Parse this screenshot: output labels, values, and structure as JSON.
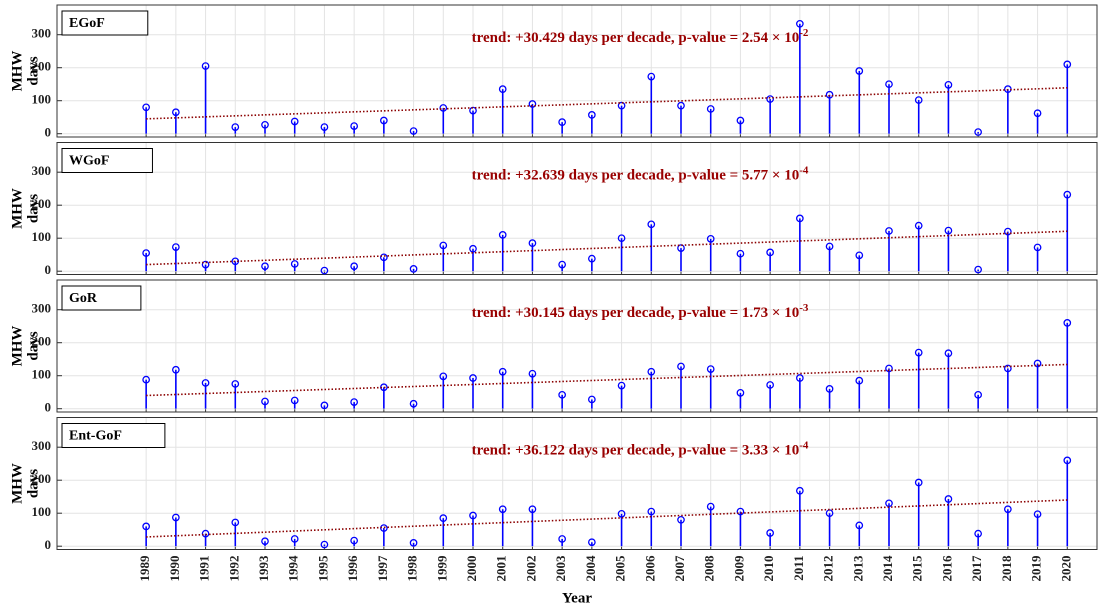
{
  "chart_data": [
    {
      "type": "stem",
      "title": "EGoF",
      "annotation": "trend: +30.429 days per decade, p-value = 2.54 × 10",
      "annotation_exponent": "-2",
      "annotation_color": "#990000",
      "ylabel": [
        "MHW",
        "days"
      ],
      "x": [
        1989,
        1990,
        1991,
        1992,
        1993,
        1994,
        1995,
        1996,
        1997,
        1998,
        1999,
        2000,
        2001,
        2002,
        2003,
        2004,
        2005,
        2006,
        2007,
        2008,
        2009,
        2010,
        2011,
        2012,
        2013,
        2014,
        2015,
        2016,
        2017,
        2018,
        2019,
        2020
      ],
      "values": [
        80,
        65,
        205,
        20,
        27,
        37,
        20,
        23,
        40,
        8,
        78,
        70,
        135,
        90,
        35,
        57,
        85,
        173,
        85,
        75,
        40,
        105,
        333,
        118,
        190,
        150,
        102,
        148,
        5,
        135,
        62,
        210
      ],
      "color": "#0000ff",
      "trend": {
        "x": [
          1989,
          2020
        ],
        "values": [
          45,
          139
        ],
        "color": "#8b0000"
      },
      "xlim": [
        1986,
        2021
      ],
      "ylim": [
        -10,
        390
      ],
      "yticks": [
        0,
        100,
        200,
        300
      ],
      "xticks": [
        1989,
        1990,
        1991,
        1992,
        1993,
        1994,
        1995,
        1996,
        1997,
        1998,
        1999,
        2000,
        2001,
        2002,
        2003,
        2004,
        2005,
        2006,
        2007,
        2008,
        2009,
        2010,
        2011,
        2012,
        2013,
        2014,
        2015,
        2016,
        2017,
        2018,
        2019,
        2020
      ],
      "grid": true
    },
    {
      "type": "stem",
      "title": "WGoF",
      "annotation": "trend: +32.639 days per decade, p-value = 5.77 × 10",
      "annotation_exponent": "-4",
      "annotation_color": "#990000",
      "ylabel": [
        "MHW",
        "days"
      ],
      "x": [
        1989,
        1990,
        1991,
        1992,
        1993,
        1994,
        1995,
        1996,
        1997,
        1998,
        1999,
        2000,
        2001,
        2002,
        2003,
        2004,
        2005,
        2006,
        2007,
        2008,
        2009,
        2010,
        2011,
        2012,
        2013,
        2014,
        2015,
        2016,
        2017,
        2018,
        2019,
        2020
      ],
      "values": [
        55,
        73,
        20,
        30,
        15,
        22,
        2,
        15,
        42,
        7,
        78,
        68,
        110,
        85,
        20,
        38,
        100,
        142,
        70,
        98,
        53,
        57,
        160,
        75,
        48,
        122,
        138,
        123,
        5,
        120,
        72,
        232
      ],
      "color": "#0000ff",
      "trend": {
        "x": [
          1989,
          2020
        ],
        "values": [
          20,
          121
        ],
        "color": "#8b0000"
      },
      "xlim": [
        1986,
        2021
      ],
      "ylim": [
        -10,
        390
      ],
      "yticks": [
        0,
        100,
        200,
        300
      ],
      "xticks": [
        1989,
        1990,
        1991,
        1992,
        1993,
        1994,
        1995,
        1996,
        1997,
        1998,
        1999,
        2000,
        2001,
        2002,
        2003,
        2004,
        2005,
        2006,
        2007,
        2008,
        2009,
        2010,
        2011,
        2012,
        2013,
        2014,
        2015,
        2016,
        2017,
        2018,
        2019,
        2020
      ],
      "grid": true
    },
    {
      "type": "stem",
      "title": "GoR",
      "annotation": "trend: +30.145 days per decade, p-value = 1.73 × 10",
      "annotation_exponent": "-3",
      "annotation_color": "#990000",
      "ylabel": [
        "MHW",
        "days"
      ],
      "x": [
        1989,
        1990,
        1991,
        1992,
        1993,
        1994,
        1995,
        1996,
        1997,
        1998,
        1999,
        2000,
        2001,
        2002,
        2003,
        2004,
        2005,
        2006,
        2007,
        2008,
        2009,
        2010,
        2011,
        2012,
        2013,
        2014,
        2015,
        2016,
        2017,
        2018,
        2019,
        2020
      ],
      "values": [
        88,
        118,
        78,
        75,
        22,
        25,
        10,
        20,
        65,
        15,
        98,
        93,
        112,
        106,
        42,
        28,
        70,
        112,
        128,
        120,
        48,
        72,
        93,
        60,
        85,
        122,
        170,
        168,
        42,
        122,
        137,
        260
      ],
      "color": "#0000ff",
      "trend": {
        "x": [
          1989,
          2020
        ],
        "values": [
          40,
          134
        ],
        "color": "#8b0000"
      },
      "xlim": [
        1986,
        2021
      ],
      "ylim": [
        -10,
        390
      ],
      "yticks": [
        0,
        100,
        200,
        300
      ],
      "xticks": [
        1989,
        1990,
        1991,
        1992,
        1993,
        1994,
        1995,
        1996,
        1997,
        1998,
        1999,
        2000,
        2001,
        2002,
        2003,
        2004,
        2005,
        2006,
        2007,
        2008,
        2009,
        2010,
        2011,
        2012,
        2013,
        2014,
        2015,
        2016,
        2017,
        2018,
        2019,
        2020
      ],
      "grid": true
    },
    {
      "type": "stem",
      "title": "Ent-GoF",
      "annotation": "trend: +36.122 days per decade, p-value = 3.33 × 10",
      "annotation_exponent": "-4",
      "annotation_color": "#990000",
      "ylabel": [
        "MHW",
        "days"
      ],
      "xlabel": "Year",
      "x": [
        1989,
        1990,
        1991,
        1992,
        1993,
        1994,
        1995,
        1996,
        1997,
        1998,
        1999,
        2000,
        2001,
        2002,
        2003,
        2004,
        2005,
        2006,
        2007,
        2008,
        2009,
        2010,
        2011,
        2012,
        2013,
        2014,
        2015,
        2016,
        2017,
        2018,
        2019,
        2020
      ],
      "values": [
        60,
        87,
        38,
        72,
        15,
        22,
        5,
        17,
        55,
        10,
        85,
        93,
        112,
        112,
        22,
        12,
        98,
        105,
        80,
        120,
        105,
        40,
        168,
        100,
        63,
        130,
        193,
        143,
        38,
        112,
        97,
        260
      ],
      "color": "#0000ff",
      "trend": {
        "x": [
          1989,
          2020
        ],
        "values": [
          28,
          140
        ],
        "color": "#8b0000"
      },
      "xlim": [
        1986,
        2021
      ],
      "ylim": [
        -10,
        390
      ],
      "yticks": [
        0,
        100,
        200,
        300
      ],
      "xticks": [
        1989,
        1990,
        1991,
        1992,
        1993,
        1994,
        1995,
        1996,
        1997,
        1998,
        1999,
        2000,
        2001,
        2002,
        2003,
        2004,
        2005,
        2006,
        2007,
        2008,
        2009,
        2010,
        2011,
        2012,
        2013,
        2014,
        2015,
        2016,
        2017,
        2018,
        2019,
        2020
      ],
      "xtick_labels": true,
      "grid": true
    }
  ]
}
